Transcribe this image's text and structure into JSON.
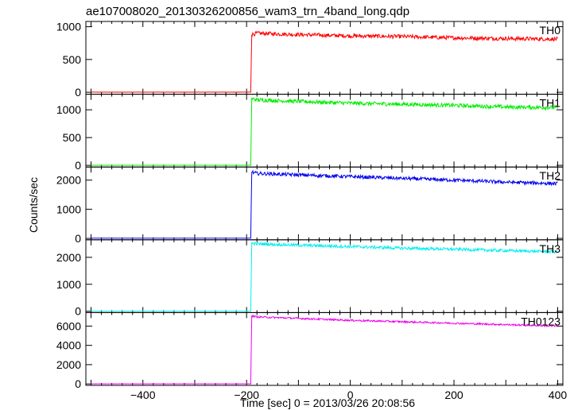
{
  "title": "ae107008020_20130326200856_wam3_trn_4band_long.qdp",
  "ylabel": "Counts/sec",
  "xlabel": "Time [sec] 0 = 2013/03/26 20:08:56",
  "chart_data": {
    "type": "line",
    "title": "ae107008020_20130326200856_wam3_trn_4band_long.qdp",
    "xlabel": "Time [sec] 0 = 2013/03/26 20:08:56",
    "ylabel": "Counts/sec",
    "xlim": [
      -510,
      410
    ],
    "x_ticks": [
      -400,
      -200,
      0,
      200,
      400
    ],
    "grid": false,
    "trigger_time": -190,
    "panels": [
      {
        "name": "TH0",
        "color": "#ff0000",
        "ylim": [
          -30,
          1080
        ],
        "y_ticks": [
          0,
          500,
          1000
        ],
        "points": [
          [
            -500,
            2
          ],
          [
            -192,
            2
          ],
          [
            -190,
            880
          ],
          [
            -180,
            900
          ],
          [
            -100,
            880
          ],
          [
            0,
            860
          ],
          [
            100,
            850
          ],
          [
            200,
            830
          ],
          [
            300,
            820
          ],
          [
            400,
            810
          ]
        ],
        "noise": 30
      },
      {
        "name": "TH1",
        "color": "#00ee00",
        "ylim": [
          -30,
          1280
        ],
        "y_ticks": [
          0,
          500,
          1000
        ],
        "points": [
          [
            -500,
            2
          ],
          [
            -192,
            2
          ],
          [
            -190,
            1200
          ],
          [
            -180,
            1180
          ],
          [
            -100,
            1150
          ],
          [
            0,
            1120
          ],
          [
            100,
            1100
          ],
          [
            200,
            1080
          ],
          [
            300,
            1050
          ],
          [
            400,
            1040
          ]
        ],
        "noise": 35
      },
      {
        "name": "TH2",
        "color": "#0000ee",
        "ylim": [
          -50,
          2450
        ],
        "y_ticks": [
          0,
          1000,
          2000
        ],
        "points": [
          [
            -500,
            5
          ],
          [
            -192,
            5
          ],
          [
            -190,
            2270
          ],
          [
            -180,
            2230
          ],
          [
            -100,
            2180
          ],
          [
            0,
            2120
          ],
          [
            100,
            2060
          ],
          [
            200,
            2000
          ],
          [
            300,
            1930
          ],
          [
            400,
            1880
          ]
        ],
        "noise": 60
      },
      {
        "name": "TH3",
        "color": "#00eeee",
        "ylim": [
          -50,
          2650
        ],
        "y_ticks": [
          0,
          1000,
          2000
        ],
        "points": [
          [
            -500,
            5
          ],
          [
            -192,
            5
          ],
          [
            -190,
            2530
          ],
          [
            -180,
            2500
          ],
          [
            -100,
            2450
          ],
          [
            0,
            2400
          ],
          [
            100,
            2340
          ],
          [
            200,
            2300
          ],
          [
            300,
            2250
          ],
          [
            400,
            2200
          ]
        ],
        "noise": 55
      },
      {
        "name": "TH0123",
        "color": "#ee00ee",
        "ylim": [
          -150,
          7400
        ],
        "y_ticks": [
          0,
          2000,
          4000,
          6000
        ],
        "points": [
          [
            -500,
            10
          ],
          [
            -192,
            10
          ],
          [
            -190,
            7050
          ],
          [
            -180,
            6950
          ],
          [
            -100,
            6800
          ],
          [
            0,
            6600
          ],
          [
            100,
            6450
          ],
          [
            200,
            6300
          ],
          [
            300,
            6150
          ],
          [
            400,
            6000
          ]
        ],
        "noise": 90
      }
    ]
  }
}
